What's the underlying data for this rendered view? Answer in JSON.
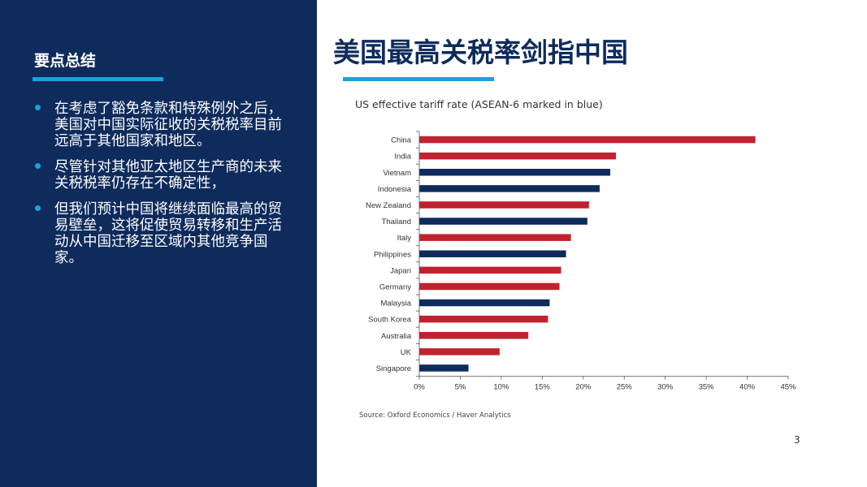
{
  "left_panel": {
    "title": "要点总结",
    "bullets": [
      "在考虑了豁免条款和特殊例外之后，美国对中国实际征收的关税税率目前远高于其他国家和地区。",
      "尽管针对其他亚太地区生产商的未来关税税率仍存在不确定性，",
      "但我们预计中国将继续面临最高的贸易壁垒，这将促使贸易转移和生产活动从中国迁移至区域内其他竞争国家。"
    ]
  },
  "main": {
    "title": "美国最高关税率剑指中国",
    "source": "Source: Oxford Economics / Haver Analytics",
    "page_number": "3"
  },
  "colors": {
    "panel_bg": "#0e2b5c",
    "accent": "#1ba1db",
    "asean_bar": "#0e2b5c",
    "other_bar": "#c0222f"
  },
  "chart_data": {
    "type": "bar",
    "orientation": "horizontal",
    "title": "US effective tariff rate (ASEAN-6 marked in blue)",
    "categories": [
      "China",
      "India",
      "Vietnam",
      "Indonesia",
      "New Zealand",
      "Thailand",
      "Italy",
      "Philippines",
      "Japan",
      "Germany",
      "Malaysia",
      "South Korea",
      "Australia",
      "UK",
      "Singapore"
    ],
    "values": [
      41,
      24,
      23.3,
      22,
      20.7,
      20.5,
      18.5,
      17.9,
      17.3,
      17.1,
      15.9,
      15.7,
      13.3,
      9.8,
      6
    ],
    "asean6": [
      false,
      false,
      true,
      true,
      false,
      true,
      false,
      true,
      false,
      false,
      true,
      false,
      false,
      false,
      true
    ],
    "xlim": [
      0,
      45
    ],
    "xticks": [
      "0%",
      "5%",
      "10%",
      "15%",
      "20%",
      "25%",
      "30%",
      "35%",
      "40%",
      "45%"
    ],
    "xlabel": "",
    "ylabel": "",
    "grid": false
  }
}
